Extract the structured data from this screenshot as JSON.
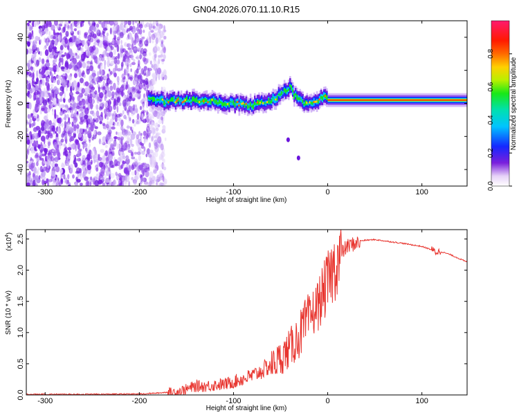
{
  "title": "GN04.2026.070.11.10.R15",
  "chart_data": [
    {
      "type": "heatmap",
      "name": "spectrogram",
      "xlabel": "Height of straight line (km)",
      "ylabel": "Frequency (Hz)",
      "xlim": [
        -320,
        148
      ],
      "ylim": [
        -50,
        50
      ],
      "xticks": [
        -300,
        -200,
        -100,
        0,
        100
      ],
      "xtick_labels": [
        "-300",
        "-200",
        "-100",
        "0",
        "100"
      ],
      "yticks": [
        -40,
        -20,
        0,
        20,
        40
      ],
      "ytick_labels": [
        "-40",
        "-20",
        "0",
        "20",
        "40"
      ],
      "colorbar": {
        "label": "Normalized spectral amplitude",
        "range": [
          0,
          1
        ],
        "ticks": [
          0.0,
          0.2,
          0.4,
          0.6,
          0.8
        ],
        "tick_labels": [
          "0.0",
          "0.2",
          "0.4",
          "0.6",
          "0.8"
        ]
      },
      "noise_region": {
        "x_range": [
          -320,
          -172
        ],
        "amplitude": 0.1
      },
      "signal_track": [
        {
          "x": -190,
          "freq": 3
        },
        {
          "x": -170,
          "freq": 1
        },
        {
          "x": -150,
          "freq": 2
        },
        {
          "x": -120,
          "freq": 1
        },
        {
          "x": -100,
          "freq": 0
        },
        {
          "x": -80,
          "freq": -1
        },
        {
          "x": -70,
          "freq": 0
        },
        {
          "x": -60,
          "freq": 2
        },
        {
          "x": -50,
          "freq": 5
        },
        {
          "x": -40,
          "freq": 10
        },
        {
          "x": -35,
          "freq": 5
        },
        {
          "x": -25,
          "freq": 0
        },
        {
          "x": -10,
          "freq": 1
        },
        {
          "x": -3,
          "freq": 6
        },
        {
          "x": 0,
          "freq": 2
        },
        {
          "x": 50,
          "freq": 2
        },
        {
          "x": 100,
          "freq": 2
        },
        {
          "x": 148,
          "freq": 2
        }
      ],
      "isolated_points": [
        {
          "x": -42,
          "freq": -22
        },
        {
          "x": -31,
          "freq": -33
        }
      ]
    },
    {
      "type": "line",
      "name": "snr",
      "xlabel": "Height of straight line (km)",
      "ylabel": "SNR (10 * v/v)",
      "y_multiplier_label": "(x10",
      "y_multiplier_exp": "4",
      "y_multiplier_close": ")",
      "xlim": [
        -320,
        148
      ],
      "ylim": [
        0,
        2.65
      ],
      "xticks": [
        -300,
        -200,
        -100,
        0,
        100
      ],
      "xtick_labels": [
        "-300",
        "-200",
        "-100",
        "0",
        "100"
      ],
      "yticks": [
        0.0,
        0.5,
        1.0,
        1.5,
        2.0,
        2.5
      ],
      "ytick_labels": [
        "0.0",
        "0.5",
        "1.0",
        "1.5",
        "2.0",
        "2.5"
      ],
      "series": [
        {
          "name": "SNR",
          "color": "#e8352f",
          "x": [
            -320,
            -250,
            -200,
            -180,
            -160,
            -150,
            -140,
            -130,
            -120,
            -110,
            -100,
            -90,
            -80,
            -70,
            -60,
            -50,
            -40,
            -30,
            -20,
            -10,
            0,
            10,
            20,
            30,
            40,
            50,
            60,
            80,
            100,
            110,
            115,
            120,
            130,
            148
          ],
          "y": [
            0.01,
            0.01,
            0.015,
            0.03,
            0.06,
            0.1,
            0.15,
            0.15,
            0.17,
            0.18,
            0.22,
            0.27,
            0.32,
            0.4,
            0.5,
            0.62,
            0.78,
            1.0,
            1.25,
            1.5,
            1.85,
            2.2,
            2.4,
            2.46,
            2.48,
            2.49,
            2.47,
            2.43,
            2.38,
            2.33,
            2.29,
            2.3,
            2.25,
            2.13
          ]
        }
      ]
    }
  ]
}
